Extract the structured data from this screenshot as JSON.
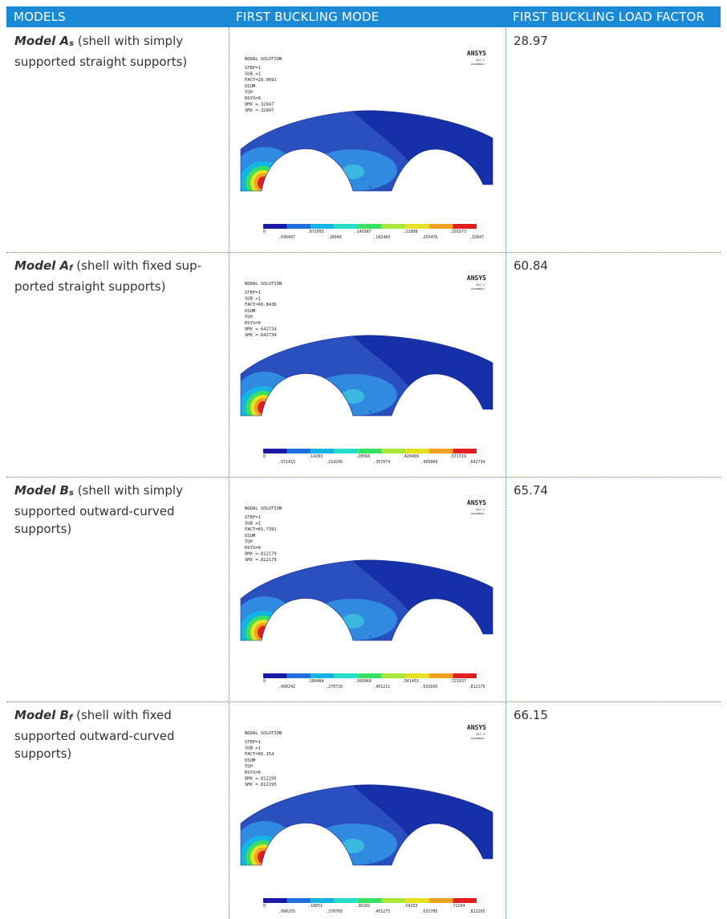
{
  "table": {
    "headers": [
      "MODELS",
      "FIRST BUCKLING MODE",
      "FIRST BUCKLING LOAD FACTOR"
    ],
    "rows": [
      {
        "model": "Model A",
        "subscript": "s",
        "description": "(shell with simply supported straight supports)",
        "load_factor": "28.97",
        "plot": {
          "title": "NODAL SOLUTION",
          "brand": "ANSYS",
          "version": "R17.2",
          "license": "Academic",
          "axis": "Y",
          "lines": [
            "STEP=1",
            "SUB =1",
            "FACT=28.9691",
            "USUM",
            "TOP",
            "RSYS=0",
            "DMX =.32847",
            "SMX =.32847"
          ],
          "legend_top": [
            "0",
            ".072993",
            ".145987",
            ".21898",
            ".291973"
          ],
          "legend_bottom": [
            ".036497",
            ".10949",
            ".182483",
            ".255476",
            ".32847"
          ]
        }
      },
      {
        "model": "Model A",
        "subscript": "f",
        "description": "(shell with fixed sup-ported straight supports)",
        "load_factor": "60.84",
        "plot": {
          "title": "NODAL SOLUTION",
          "brand": "ANSYS",
          "version": "R17.2",
          "license": "Academic",
          "axis": "Y",
          "lines": [
            "STEP=1",
            "SUB =1",
            "FACT=60.8436",
            "USUM",
            "TOP",
            "RSYS=0",
            "DMX =.642734",
            "SMX =.642734"
          ],
          "legend_top": [
            "0",
            ".14283",
            ".28566",
            ".428489",
            ".571319"
          ],
          "legend_bottom": [
            ".071415",
            ".214245",
            ".357074",
            ".499904",
            ".642734"
          ]
        }
      },
      {
        "model": "Model B",
        "subscript": "s",
        "description": "(shell with simply supported outward-curved supports)",
        "load_factor": "65.74",
        "plot": {
          "title": "NODAL SOLUTION",
          "brand": "ANSYS",
          "version": "R17.2",
          "license": "Academic",
          "axis": "Y",
          "lines": [
            "STEP=1",
            "SUB =1",
            "FACT=65.7391",
            "USUM",
            "TOP",
            "RSYS=0",
            "DMX =.812179",
            "SMX =.812179"
          ],
          "legend_top": [
            "0",
            ".180484",
            ".360969",
            ".541453",
            ".721937"
          ],
          "legend_bottom": [
            ".090242",
            ".270726",
            ".451211",
            ".631695",
            ".812179"
          ]
        }
      },
      {
        "model": "Model B",
        "subscript": "f",
        "description": "(shell with fixed supported outward-curved supports)",
        "load_factor": "66.15",
        "plot": {
          "title": "NODAL SOLUTION",
          "brand": "ANSYS",
          "version": "R17.2",
          "license": "Academic",
          "axis": "Y",
          "lines": [
            "STEP=1",
            "SUB =1",
            "FACT=66.154",
            "USUM",
            "TOP",
            "RSYS=0",
            "DMX =.812295",
            "SMX =.812295"
          ],
          "legend_top": [
            "0",
            ".18051",
            ".36102",
            ".54153",
            ".72204"
          ],
          "legend_bottom": [
            ".090255",
            ".270765",
            ".451275",
            ".631785",
            ".812295"
          ]
        }
      }
    ]
  }
}
